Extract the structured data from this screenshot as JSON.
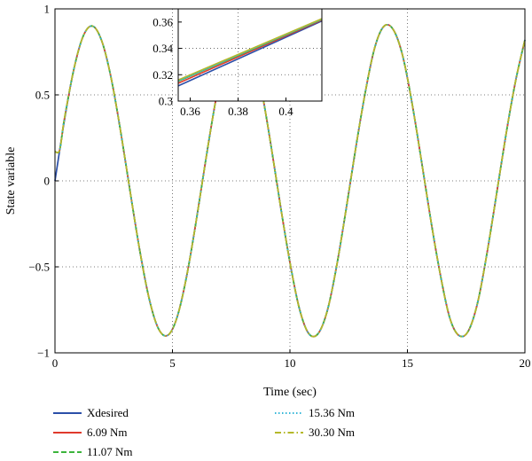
{
  "chart_data": [
    {
      "type": "line",
      "xlabel": "Time (sec)",
      "ylabel": "State variable",
      "xlim": [
        0,
        20
      ],
      "ylim": [
        -1,
        1
      ],
      "xticks": [
        0,
        5,
        10,
        15,
        20
      ],
      "yticks": [
        -1,
        -0.5,
        0,
        0.5,
        1
      ],
      "xtick_labels": [
        "0",
        "5",
        "10",
        "15",
        "20"
      ],
      "ytick_labels": [
        "−1",
        "−0.5",
        "0",
        "0.5",
        "1"
      ],
      "grid": true,
      "legend_position": "bottom",
      "series": [
        {
          "name": "Xdesired",
          "color": "#2b4fa8",
          "style": "solid",
          "x": [
            0,
            0.4,
            0.8,
            1.2,
            1.6,
            2.0,
            2.4,
            2.8,
            3.2,
            3.6,
            4.0,
            4.4,
            4.8,
            5.2,
            5.6,
            6.0,
            6.4,
            6.8,
            7.2,
            7.6,
            8.0,
            8.4,
            8.8,
            9.2,
            9.6,
            10.0,
            10.4,
            10.8,
            11.2,
            11.6,
            12.0,
            12.4,
            12.8,
            13.2,
            13.6,
            14.0,
            14.4,
            14.8,
            15.2,
            15.6,
            16.0,
            16.4,
            16.8,
            17.2,
            17.6,
            18.0,
            18.4,
            18.8,
            19.2,
            19.6,
            20.0
          ],
          "y": [
            0.0,
            0.35,
            0.646,
            0.841,
            0.9,
            0.81,
            0.591,
            0.283,
            -0.063,
            -0.398,
            -0.68,
            -0.858,
            -0.898,
            -0.792,
            -0.557,
            -0.242,
            0.106,
            0.436,
            0.712,
            0.874,
            0.894,
            0.772,
            0.522,
            0.2,
            -0.148,
            -0.474,
            -0.742,
            -0.888,
            -0.888,
            -0.75,
            -0.486,
            -0.157,
            0.19,
            0.51,
            0.77,
            0.899,
            0.879,
            0.726,
            0.449,
            0.114,
            -0.232,
            -0.545,
            -0.796,
            -0.9,
            -0.871,
            -0.701,
            -0.41,
            -0.071,
            0.273,
            0.578,
            0.819
          ]
        },
        {
          "name": "6.09 Nm",
          "color": "#e03a2c",
          "style": "solid",
          "x": [
            0,
            0.2,
            0.4,
            0.8,
            1.2,
            1.6,
            2.0,
            2.4,
            2.8,
            3.2,
            3.6,
            4.0,
            4.4,
            4.8,
            5.2,
            5.6,
            6.0,
            6.4,
            6.8,
            7.2,
            7.6,
            8.0,
            8.4,
            8.8,
            9.2,
            9.6,
            10.0,
            10.4,
            10.8,
            11.2,
            11.6,
            12.0,
            12.4,
            12.8,
            13.2,
            13.6,
            14.0,
            14.4,
            14.8,
            15.2,
            15.6,
            16.0,
            16.4,
            16.8,
            17.2,
            17.6,
            18.0,
            18.4,
            18.8,
            19.2,
            19.6,
            20.0
          ],
          "y": [
            0.17,
            0.18,
            0.36,
            0.647,
            0.841,
            0.9,
            0.81,
            0.591,
            0.283,
            -0.063,
            -0.398,
            -0.68,
            -0.858,
            -0.898,
            -0.792,
            -0.557,
            -0.242,
            0.106,
            0.436,
            0.712,
            0.874,
            0.894,
            0.772,
            0.522,
            0.2,
            -0.148,
            -0.474,
            -0.742,
            -0.888,
            -0.888,
            -0.75,
            -0.486,
            -0.157,
            0.19,
            0.51,
            0.77,
            0.899,
            0.879,
            0.726,
            0.449,
            0.114,
            -0.232,
            -0.545,
            -0.796,
            -0.9,
            -0.871,
            -0.701,
            -0.41,
            -0.071,
            0.273,
            0.578,
            0.819
          ]
        },
        {
          "name": "11.07 Nm",
          "color": "#3cb43c",
          "style": "dashed",
          "x": [
            0,
            0.2,
            0.4,
            0.8,
            1.2,
            1.6,
            2.0,
            2.4,
            2.8,
            3.2,
            3.6,
            4.0,
            4.4,
            4.8,
            5.2,
            5.6,
            6.0,
            6.4,
            6.8,
            7.2,
            7.6,
            8.0,
            8.4,
            8.8,
            9.2,
            9.6,
            10.0,
            10.4,
            10.8,
            11.2,
            11.6,
            12.0,
            12.4,
            12.8,
            13.2,
            13.6,
            14.0,
            14.4,
            14.8,
            15.2,
            15.6,
            16.0,
            16.4,
            16.8,
            17.2,
            17.6,
            18.0,
            18.4,
            18.8,
            19.2,
            19.6,
            20.0
          ],
          "y": [
            0.17,
            0.18,
            0.36,
            0.647,
            0.841,
            0.9,
            0.81,
            0.591,
            0.283,
            -0.063,
            -0.398,
            -0.68,
            -0.858,
            -0.898,
            -0.792,
            -0.557,
            -0.242,
            0.106,
            0.436,
            0.712,
            0.874,
            0.894,
            0.772,
            0.522,
            0.2,
            -0.148,
            -0.474,
            -0.742,
            -0.888,
            -0.888,
            -0.75,
            -0.486,
            -0.157,
            0.19,
            0.51,
            0.77,
            0.899,
            0.879,
            0.726,
            0.449,
            0.114,
            -0.232,
            -0.545,
            -0.796,
            -0.9,
            -0.871,
            -0.701,
            -0.41,
            -0.071,
            0.273,
            0.578,
            0.819
          ]
        },
        {
          "name": "15.36 Nm",
          "color": "#35b7d8",
          "style": "dotted",
          "x": [
            0,
            0.2,
            0.4,
            0.8,
            1.2,
            1.6,
            2.0,
            2.4,
            2.8,
            3.2,
            3.6,
            4.0,
            4.4,
            4.8,
            5.2,
            5.6,
            6.0,
            6.4,
            6.8,
            7.2,
            7.6,
            8.0,
            8.4,
            8.8,
            9.2,
            9.6,
            10.0,
            10.4,
            10.8,
            11.2,
            11.6,
            12.0,
            12.4,
            12.8,
            13.2,
            13.6,
            14.0,
            14.4,
            14.8,
            15.2,
            15.6,
            16.0,
            16.4,
            16.8,
            17.2,
            17.6,
            18.0,
            18.4,
            18.8,
            19.2,
            19.6,
            20.0
          ],
          "y": [
            0.17,
            0.18,
            0.36,
            0.647,
            0.841,
            0.9,
            0.81,
            0.591,
            0.283,
            -0.063,
            -0.398,
            -0.68,
            -0.858,
            -0.898,
            -0.792,
            -0.557,
            -0.242,
            0.106,
            0.436,
            0.712,
            0.874,
            0.894,
            0.772,
            0.522,
            0.2,
            -0.148,
            -0.474,
            -0.742,
            -0.888,
            -0.888,
            -0.75,
            -0.486,
            -0.157,
            0.19,
            0.51,
            0.77,
            0.899,
            0.879,
            0.726,
            0.449,
            0.114,
            -0.232,
            -0.545,
            -0.796,
            -0.9,
            -0.871,
            -0.701,
            -0.41,
            -0.071,
            0.273,
            0.578,
            0.819
          ]
        },
        {
          "name": "30.30 Nm",
          "color": "#b5b82a",
          "style": "dashdot",
          "x": [
            0,
            0.2,
            0.4,
            0.8,
            1.2,
            1.6,
            2.0,
            2.4,
            2.8,
            3.2,
            3.6,
            4.0,
            4.4,
            4.8,
            5.2,
            5.6,
            6.0,
            6.4,
            6.8,
            7.2,
            7.6,
            8.0,
            8.4,
            8.8,
            9.2,
            9.6,
            10.0,
            10.4,
            10.8,
            11.2,
            11.6,
            12.0,
            12.4,
            12.8,
            13.2,
            13.6,
            14.0,
            14.4,
            14.8,
            15.2,
            15.6,
            16.0,
            16.4,
            16.8,
            17.2,
            17.6,
            18.0,
            18.4,
            18.8,
            19.2,
            19.6,
            20.0
          ],
          "y": [
            0.17,
            0.18,
            0.36,
            0.647,
            0.841,
            0.9,
            0.81,
            0.591,
            0.283,
            -0.063,
            -0.398,
            -0.68,
            -0.858,
            -0.898,
            -0.792,
            -0.557,
            -0.242,
            0.106,
            0.436,
            0.712,
            0.874,
            0.894,
            0.772,
            0.522,
            0.2,
            -0.148,
            -0.474,
            -0.742,
            -0.888,
            -0.888,
            -0.75,
            -0.486,
            -0.157,
            0.19,
            0.51,
            0.77,
            0.899,
            0.879,
            0.726,
            0.449,
            0.114,
            -0.232,
            -0.545,
            -0.796,
            -0.9,
            -0.871,
            -0.701,
            -0.41,
            -0.071,
            0.273,
            0.578,
            0.819
          ]
        }
      ]
    },
    {
      "type": "line",
      "inset": true,
      "xlim": [
        0.355,
        0.415
      ],
      "ylim": [
        0.3,
        0.37
      ],
      "xticks": [
        0.36,
        0.38,
        0.4
      ],
      "yticks": [
        0.3,
        0.32,
        0.34,
        0.36
      ],
      "xtick_labels": [
        "0.36",
        "0.38",
        "0.4"
      ],
      "ytick_labels": [
        "0.3",
        "0.32",
        "0.34",
        "0.36"
      ],
      "grid": true,
      "series": [
        {
          "name": "Xdesired",
          "color": "#2b4fa8",
          "style": "solid",
          "x": [
            0.355,
            0.415
          ],
          "y": [
            0.3115,
            0.3608
          ]
        },
        {
          "name": "6.09 Nm",
          "color": "#e03a2c",
          "style": "solid",
          "x": [
            0.355,
            0.415
          ],
          "y": [
            0.3135,
            0.3615
          ]
        },
        {
          "name": "11.07 Nm",
          "color": "#3cb43c",
          "style": "solid",
          "x": [
            0.355,
            0.415
          ],
          "y": [
            0.315,
            0.362
          ]
        },
        {
          "name": "15.36 Nm",
          "color": "#35b7d8",
          "style": "solid",
          "x": [
            0.355,
            0.415
          ],
          "y": [
            0.3155,
            0.3622
          ]
        },
        {
          "name": "30.30 Nm",
          "color": "#b5b82a",
          "style": "solid",
          "x": [
            0.355,
            0.415
          ],
          "y": [
            0.316,
            0.3625
          ]
        }
      ]
    }
  ]
}
